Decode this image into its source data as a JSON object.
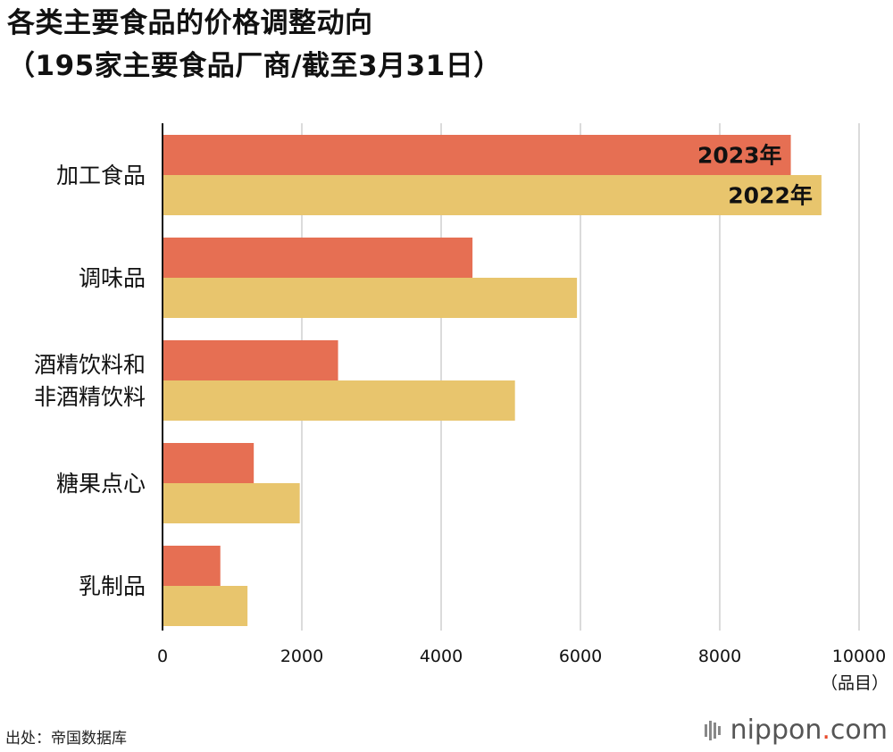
{
  "title_line1": "各类主要食品的价格调整动向",
  "title_line2": "（195家主要食品厂商/截至3月31日）",
  "source": "出处：帝国数据库",
  "brand": {
    "name": "nippon",
    "dot": ".",
    "tld": "com"
  },
  "colors": {
    "s2023": "#e66f53",
    "s2022": "#e8c56d",
    "grid": "#cfcfcf",
    "axis": "#111111"
  },
  "chart_data": {
    "type": "bar",
    "orientation": "horizontal",
    "categories": [
      [
        "加工食品"
      ],
      [
        "调味品"
      ],
      [
        "酒精饮料和",
        "非酒精饮料"
      ],
      [
        "糖果点心"
      ],
      [
        "乳制品"
      ]
    ],
    "series": [
      {
        "name": "2023年",
        "values": [
          9020,
          4450,
          2520,
          1310,
          830
        ]
      },
      {
        "name": "2022年",
        "values": [
          9460,
          5950,
          5060,
          1970,
          1220
        ]
      }
    ],
    "xlim": [
      0,
      10000
    ],
    "xticks": [
      0,
      2000,
      4000,
      6000,
      8000,
      10000
    ],
    "xticklabels": [
      "0",
      "2000",
      "4000",
      "6000",
      "8000",
      "10000"
    ],
    "xunit": "（品目）",
    "grid": true,
    "legend": "inline-in-first-bars"
  }
}
